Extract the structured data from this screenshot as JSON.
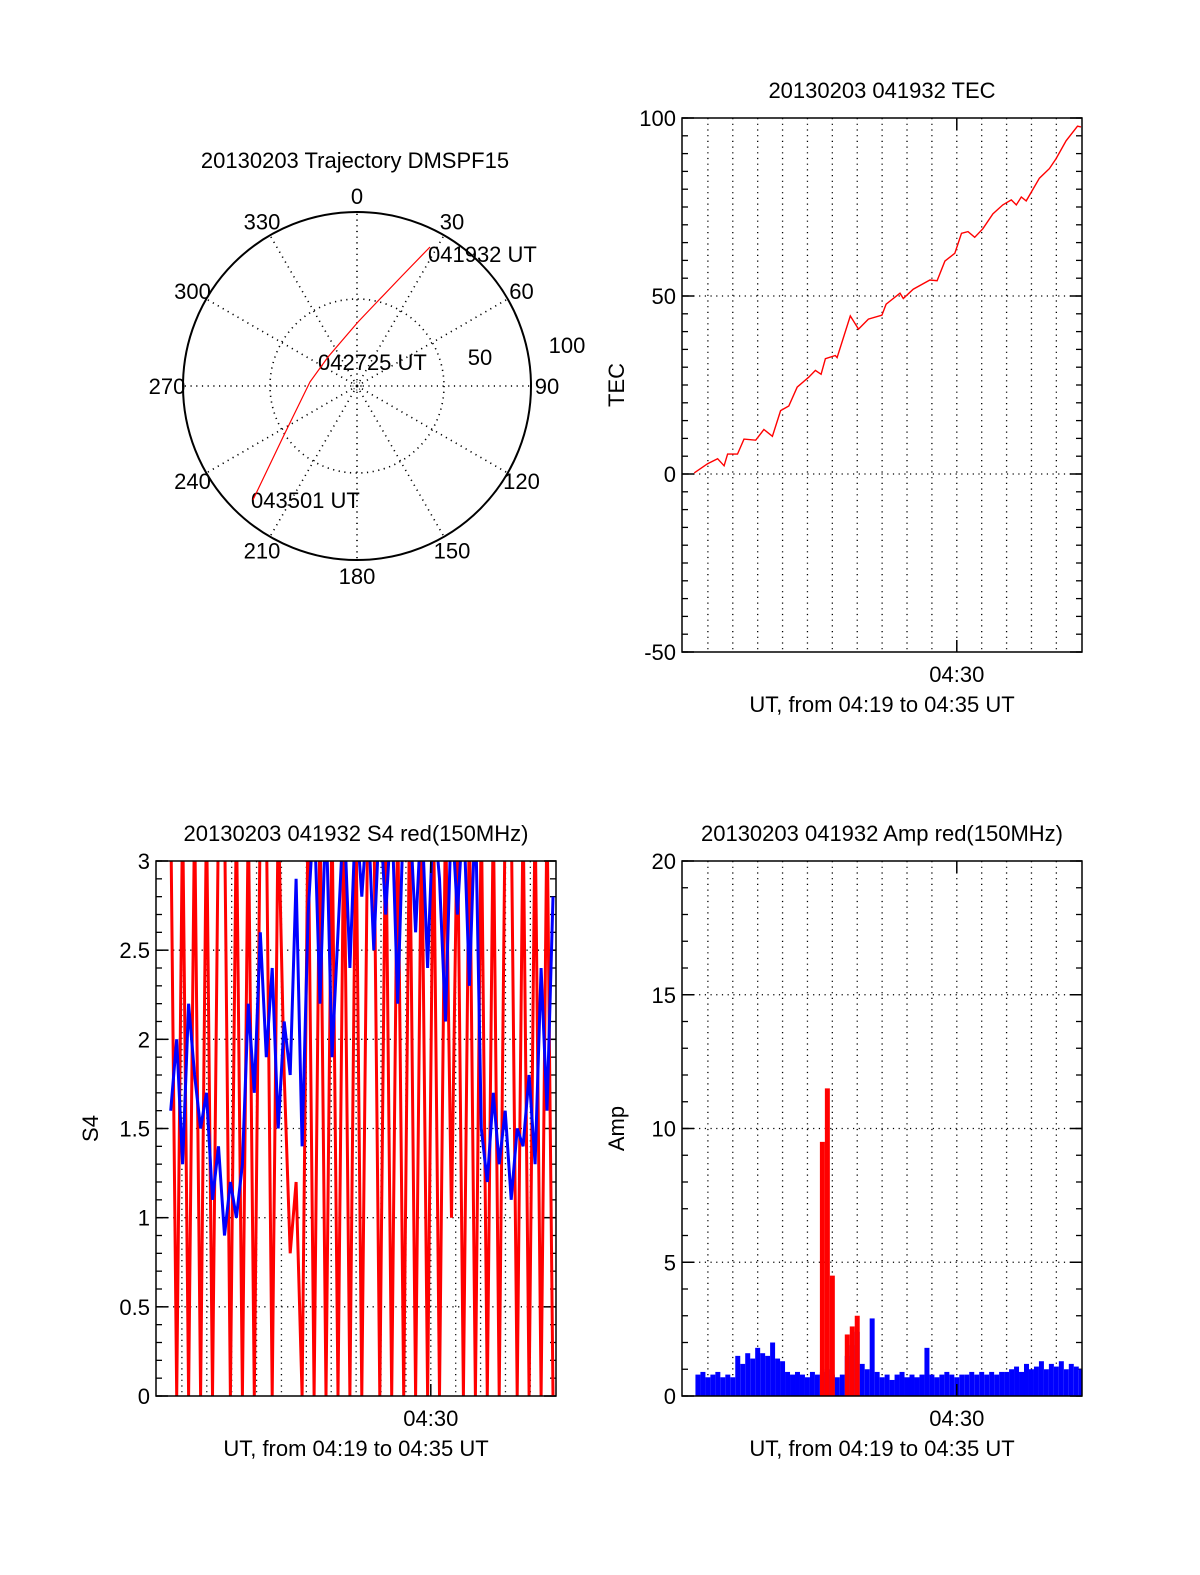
{
  "chart_data": [
    {
      "type": "polar",
      "title": "20130203 Trajectory DMSPF15",
      "angle_labels": [
        "0",
        "30",
        "60",
        "90",
        "120",
        "150",
        "180",
        "210",
        "240",
        "270",
        "300",
        "330"
      ],
      "radial_labels": [
        "50",
        "100"
      ],
      "rlim": [
        0,
        100
      ],
      "trajectory_color": "#ff0000",
      "trajectory": {
        "azimuth_deg": [
          27.7,
          22.2,
          13.4,
          0.9,
          315,
          275,
          235.4,
          222.4
        ],
        "zenith": [
          90.2,
          68.3,
          49.6,
          36.8,
          23.6,
          27.1,
          51.7,
          88.6
        ]
      },
      "annotations": [
        "041932 UT",
        "042725 UT",
        "043501 UT"
      ]
    },
    {
      "type": "line",
      "title": "20130203 041932 TEC",
      "xlabel": "UT, from 04:19 to 04:35 UT",
      "ylabel": "TEC",
      "x_units": "minutes after 04:19",
      "xlim": [
        -0.04,
        16.03
      ],
      "ylim": [
        -50,
        100
      ],
      "yticks": [
        "100",
        "50",
        "0",
        "-50"
      ],
      "xtick_label": "04:30",
      "grid": true,
      "series": [
        {
          "name": "TEC",
          "color": "#ff0000",
          "x": [
            0.45,
            0.99,
            1.39,
            1.65,
            1.79,
            2.19,
            2.45,
            2.92,
            3.25,
            3.59,
            3.92,
            4.25,
            4.59,
            5.05,
            5.32,
            5.55,
            5.72,
            6.12,
            6.19,
            6.72,
            7.05,
            7.45,
            7.99,
            8.16,
            8.72,
            8.85,
            9.25,
            9.92,
            10.21,
            10.52,
            10.92,
            11.19,
            11.45,
            11.72,
            12.05,
            12.45,
            12.85,
            13.19,
            13.39,
            13.59,
            13.79,
            14.32,
            14.72,
            14.99,
            15.39,
            15.85,
            15.99
          ],
          "y": [
            0.3,
            2.9,
            4.3,
            2.3,
            5.6,
            5.6,
            9.8,
            9.5,
            12.5,
            10.6,
            17.8,
            19.1,
            24.4,
            27.2,
            29.1,
            28,
            32.4,
            33.3,
            32.7,
            44.4,
            40.7,
            43.5,
            44.6,
            47.7,
            50.8,
            49.3,
            51.9,
            54.5,
            54.3,
            59.8,
            62,
            67.6,
            68.1,
            66.5,
            68.9,
            73.1,
            75.6,
            77,
            75.6,
            77.8,
            76.7,
            83.1,
            85.8,
            88.6,
            93.6,
            97.7,
            97.5
          ]
        }
      ]
    },
    {
      "type": "line",
      "title": "20130203 041932 S4 red(150MHz)",
      "xlabel": "UT, from 04:19 to 04:35 UT",
      "ylabel": "S4",
      "x_units": "minutes after 04:19",
      "xlim": [
        -0.04,
        16.03
      ],
      "ylim": [
        0,
        3
      ],
      "yticks": [
        "3",
        "2.5",
        "2",
        "1.5",
        "1",
        "0.5",
        "0"
      ],
      "xtick_label": "04:30",
      "grid": true,
      "x_start": 0.55,
      "x_step": 0.24,
      "series": [
        {
          "name": "red",
          "color": "#ff0000",
          "values": [
            3,
            0,
            3,
            0,
            3,
            0,
            3,
            0,
            3,
            3,
            0,
            3,
            0,
            3,
            0,
            3,
            3,
            0,
            3,
            1.8,
            0.8,
            1.2,
            0,
            3,
            0,
            3,
            0,
            3,
            0,
            3,
            0,
            3,
            0,
            3,
            3,
            0,
            3,
            0,
            3,
            0,
            3,
            0,
            3,
            0,
            3,
            0,
            3,
            1,
            3,
            0,
            3,
            0,
            3,
            0,
            3,
            0,
            3,
            3,
            0,
            3,
            0,
            3,
            0,
            3,
            0
          ]
        },
        {
          "name": "blue",
          "color": "#0000ff",
          "values": [
            1.6,
            2.0,
            1.3,
            2.2,
            1.8,
            1.5,
            1.7,
            1.1,
            1.4,
            0.9,
            1.2,
            1.0,
            1.3,
            2.2,
            1.7,
            2.6,
            1.9,
            2.4,
            1.5,
            2.1,
            1.8,
            2.9,
            1.4,
            2.7,
            3.0,
            2.2,
            3.0,
            1.9,
            2.6,
            3.0,
            2.4,
            3.0,
            2.8,
            3.0,
            2.5,
            3.0,
            2.7,
            3.0,
            2.2,
            3.0,
            3.0,
            2.6,
            3.0,
            2.4,
            3.0,
            2.9,
            2.1,
            3.0,
            2.7,
            3.0,
            2.3,
            3.0,
            1.5,
            1.2,
            1.7,
            1.3,
            1.6,
            1.1,
            1.5,
            1.4,
            1.8,
            1.3,
            2.4,
            1.6,
            2.8
          ]
        }
      ]
    },
    {
      "type": "bar",
      "title": "20130203 041932 Amp red(150MHz)",
      "xlabel": "UT, from 04:19 to 04:35 UT",
      "ylabel": "Amp",
      "x_units": "minutes after 04:19",
      "xlim": [
        -0.04,
        16.03
      ],
      "ylim": [
        0,
        20
      ],
      "yticks": [
        "20",
        "15",
        "10",
        "5",
        "0"
      ],
      "xtick_label": "04:30",
      "grid": true,
      "x_start": 0.5,
      "x_step": 0.2,
      "series": [
        {
          "name": "blue",
          "color": "#0000ff",
          "values": [
            0.8,
            0.9,
            0.7,
            0.8,
            0.9,
            0.7,
            0.8,
            0.7,
            1.5,
            1.2,
            1.6,
            1.4,
            1.8,
            1.6,
            1.5,
            2.0,
            1.4,
            1.3,
            0.9,
            0.8,
            0.9,
            0.8,
            0.7,
            0.9,
            0.8,
            0.9,
            1.0,
            0.8,
            0.7,
            0.8,
            1.5,
            1.9,
            2.4,
            1.2,
            1.0,
            2.9,
            0.9,
            0.7,
            0.8,
            0.6,
            0.8,
            0.9,
            0.7,
            0.8,
            0.7,
            0.8,
            1.8,
            0.8,
            0.7,
            0.8,
            0.9,
            0.8,
            0.7,
            0.8,
            0.8,
            0.9,
            0.8,
            0.9,
            0.8,
            0.9,
            0.8,
            0.9,
            0.9,
            1.0,
            1.1,
            0.9,
            1.2,
            1.0,
            1.1,
            1.3,
            1.0,
            1.2,
            1.1,
            1.3,
            1.0,
            1.2,
            1.1,
            1.0
          ]
        },
        {
          "name": "red",
          "color": "#ff0000",
          "values": [
            0,
            0,
            0,
            0,
            0,
            0,
            0,
            0,
            0,
            0,
            0,
            0,
            0,
            0,
            0,
            0,
            0,
            0,
            0,
            0,
            0,
            0,
            0,
            0,
            0,
            9.5,
            11.5,
            4.5,
            0,
            0,
            2.3,
            2.6,
            3.0,
            0,
            0,
            0,
            0,
            0,
            0,
            0,
            0,
            0,
            0,
            0,
            0,
            0,
            0,
            0,
            0,
            0,
            0,
            0,
            0,
            0,
            0,
            0,
            0,
            0,
            0,
            0,
            0,
            0,
            0,
            0,
            0,
            0,
            0,
            0,
            0,
            0,
            0,
            0,
            0,
            0,
            0,
            0,
            0,
            0
          ]
        }
      ]
    }
  ]
}
